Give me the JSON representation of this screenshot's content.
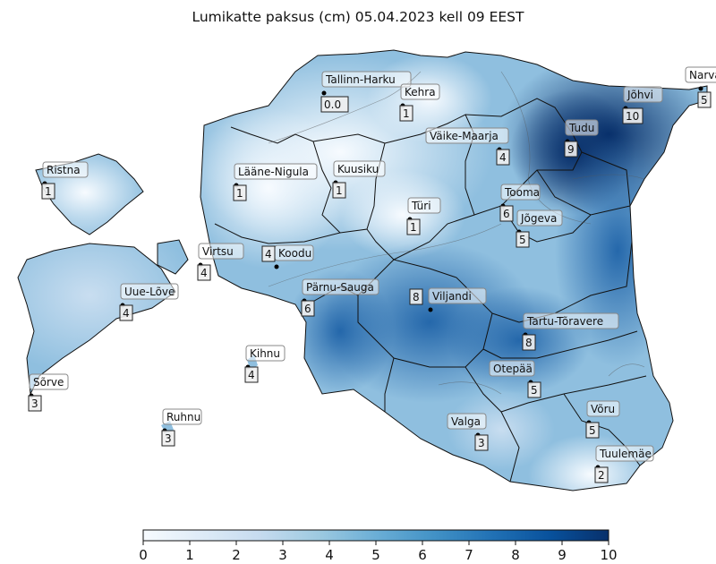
{
  "title": "Lumikatte paksus (cm) 05.04.2023 kell 09 EEST",
  "colorbar": {
    "min": 0,
    "max": 10,
    "ticks": [
      "0",
      "1",
      "2",
      "3",
      "4",
      "5",
      "6",
      "7",
      "8",
      "9",
      "10"
    ],
    "colors": [
      "#f7fbff",
      "#08306b"
    ]
  },
  "stations": [
    {
      "name": "Tallinn-Harku",
      "value": "0.0"
    },
    {
      "name": "Kehra",
      "value": "1"
    },
    {
      "name": "Väike-Maarja",
      "value": "4"
    },
    {
      "name": "Tudu",
      "value": "9"
    },
    {
      "name": "Jõhvi",
      "value": "10"
    },
    {
      "name": "Narva",
      "value": "5"
    },
    {
      "name": "Ristna",
      "value": "1"
    },
    {
      "name": "Lääne-Nigula",
      "value": "1"
    },
    {
      "name": "Kuusiku",
      "value": "1"
    },
    {
      "name": "Türi",
      "value": "1"
    },
    {
      "name": "Tooma",
      "value": "6"
    },
    {
      "name": "Jõgeva",
      "value": "5"
    },
    {
      "name": "Virtsu",
      "value": "4"
    },
    {
      "name": "Koodu",
      "value": "4"
    },
    {
      "name": "Pärnu-Sauga",
      "value": "6"
    },
    {
      "name": "Viljandi",
      "value": "8"
    },
    {
      "name": "Uue-Lõve",
      "value": "4"
    },
    {
      "name": "Tartu-Tõravere",
      "value": "8"
    },
    {
      "name": "Kihnu",
      "value": "4"
    },
    {
      "name": "Otepää",
      "value": "5"
    },
    {
      "name": "Sõrve",
      "value": "3"
    },
    {
      "name": "Võru",
      "value": "5"
    },
    {
      "name": "Valga",
      "value": "3"
    },
    {
      "name": "Ruhnu",
      "value": "3"
    },
    {
      "name": "Tuulemäe",
      "value": "2"
    }
  ]
}
